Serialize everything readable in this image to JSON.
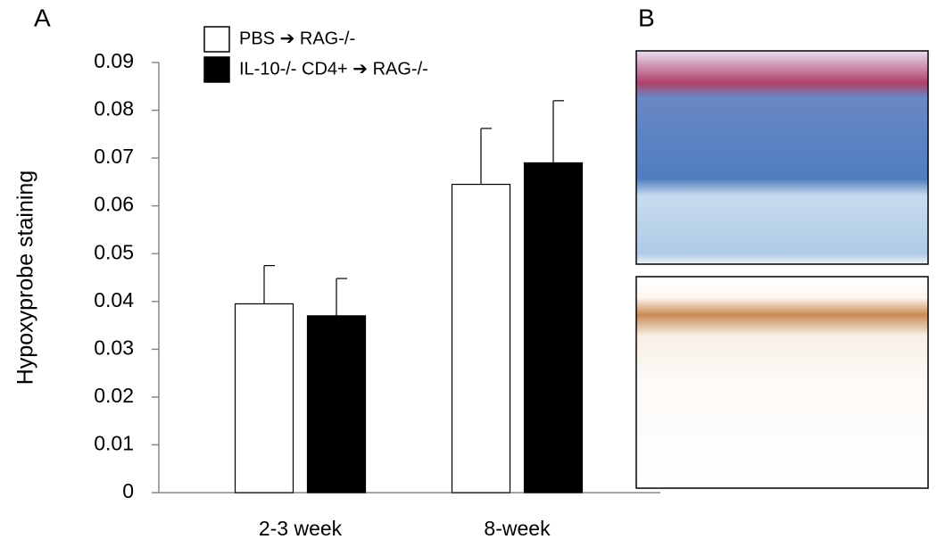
{
  "chart_data": {
    "type": "bar",
    "panel_labels": [
      "A",
      "B"
    ],
    "ylabel": "Hypoxyprobe staining",
    "categories": [
      "2-3 week",
      "8-week"
    ],
    "series": [
      {
        "name": "PBS ➔ RAG-/-",
        "color": "#ffffff",
        "values": [
          0.0395,
          0.0645
        ],
        "errors": [
          0.008,
          0.0117
        ]
      },
      {
        "name": "IL-10-/- CD4+ ➔ RAG-/-",
        "color": "#000000",
        "values": [
          0.037,
          0.069
        ],
        "errors": [
          0.0078,
          0.013
        ]
      }
    ],
    "ylim": [
      0,
      0.09
    ],
    "yticks": [
      0,
      0.01,
      0.02,
      0.03,
      0.04,
      0.05,
      0.06,
      0.07,
      0.08,
      0.09
    ],
    "legend": "top-left"
  }
}
